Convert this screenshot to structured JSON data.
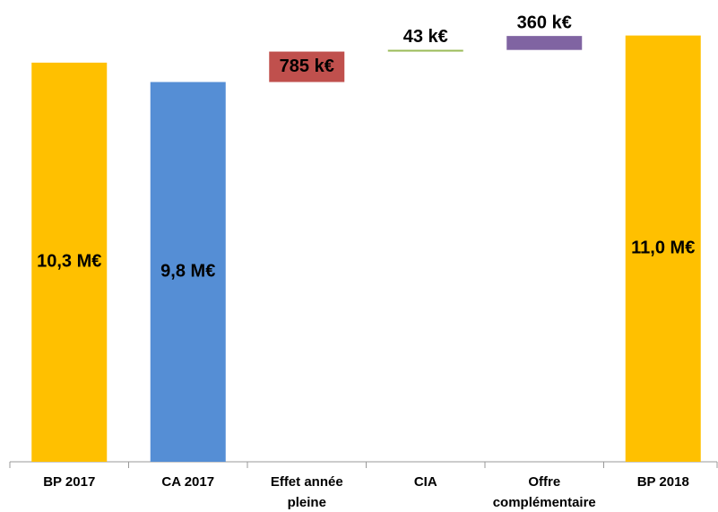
{
  "chart_data": {
    "type": "waterfall",
    "categories": [
      "BP 2017",
      "CA 2017",
      "Effet année pleine",
      "CIA",
      "Offre complémentaire",
      "BP 2018"
    ],
    "values": [
      10300000,
      9800000,
      785000,
      43000,
      360000,
      11000000
    ],
    "value_labels": [
      "10,3 M€",
      "9,8 M€",
      "785 k€",
      "43 k€",
      "360 k€",
      "11,0 M€"
    ],
    "measure": [
      "absolute",
      "absolute",
      "relative",
      "relative",
      "relative",
      "absolute"
    ],
    "colors": [
      "#ffc000",
      "#558ed5",
      "#c0504d",
      "#9bbb59",
      "#8064a2",
      "#ffc000"
    ],
    "ylim": [
      0,
      11500000
    ]
  }
}
